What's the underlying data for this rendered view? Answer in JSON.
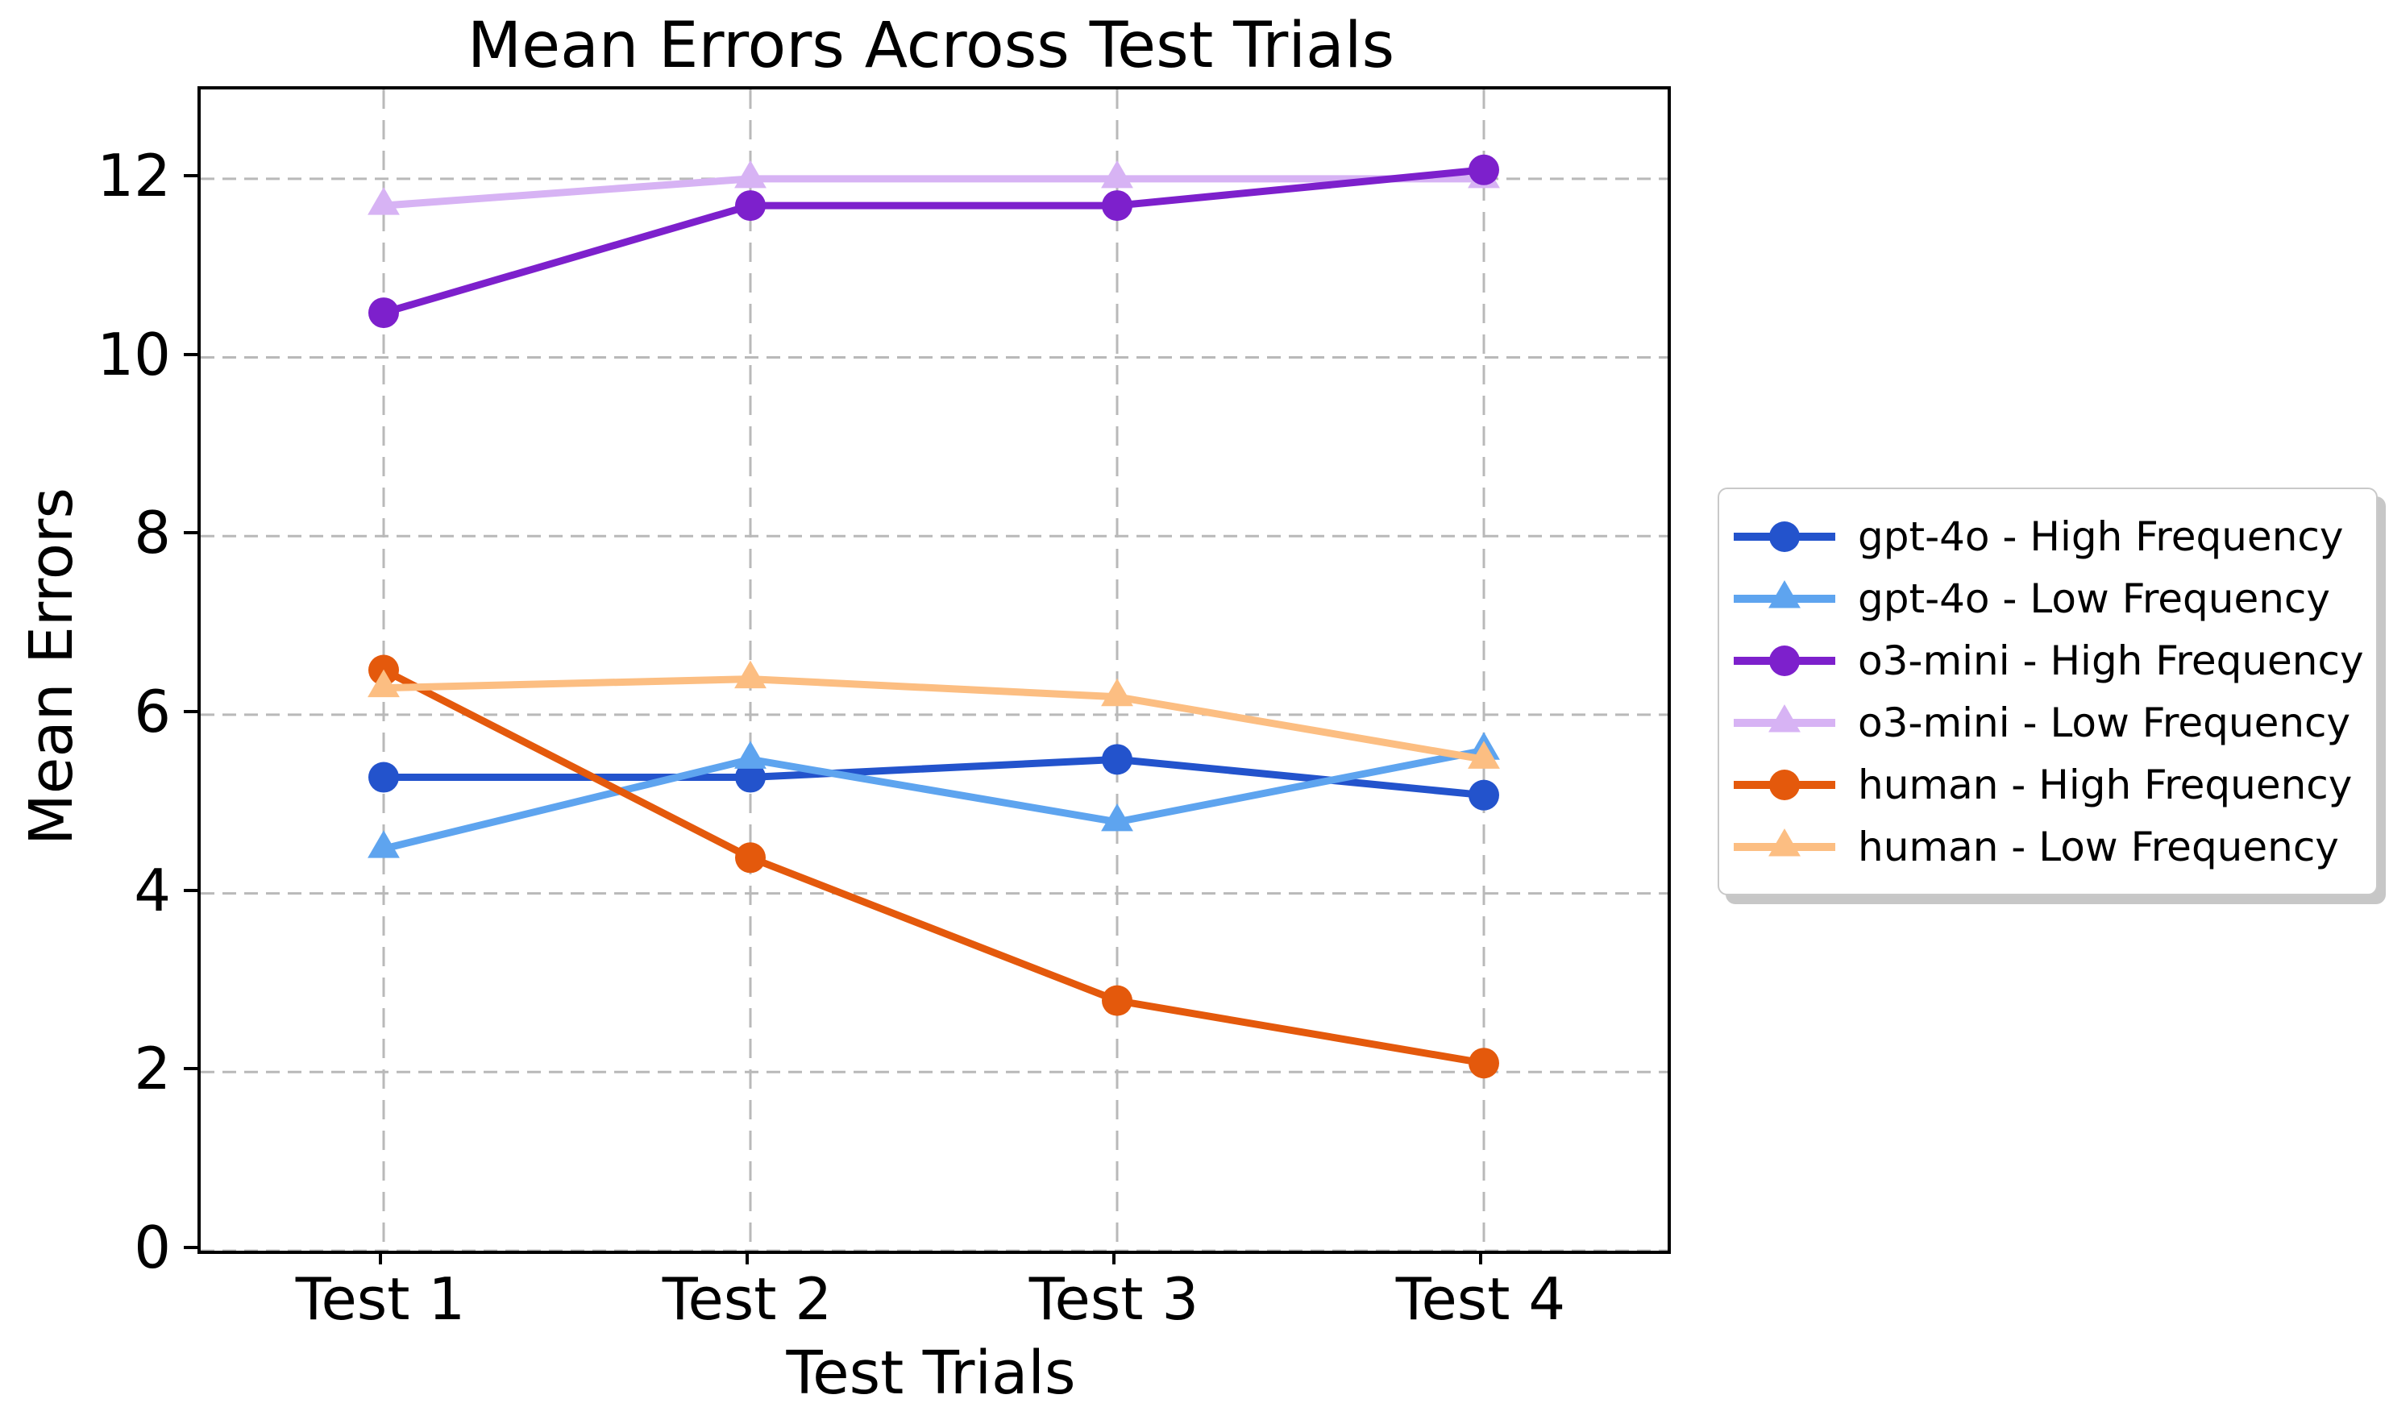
{
  "chart_data": {
    "type": "line",
    "title": "Mean Errors Across Test Trials",
    "xlabel": "Test Trials",
    "ylabel": "Mean Errors",
    "categories": [
      "Test 1",
      "Test 2",
      "Test 3",
      "Test 4"
    ],
    "yticks": [
      0,
      2,
      4,
      6,
      8,
      10,
      12
    ],
    "ylim": [
      0,
      13
    ],
    "grid": true,
    "legend_position": "right",
    "colors": {
      "grid": "#b9b9b9",
      "axis": "#000000",
      "legend_border": "#c9c9c9"
    },
    "series": [
      {
        "name": "gpt-4o - High Frequency",
        "marker": "circle",
        "color": "#2353cc",
        "values": [
          5.3,
          5.3,
          5.5,
          5.1
        ]
      },
      {
        "name": "gpt-4o - Low Frequency",
        "marker": "triangle",
        "color": "#5ea4ef",
        "values": [
          4.5,
          5.5,
          4.8,
          5.6
        ]
      },
      {
        "name": "o3-mini - High Frequency",
        "marker": "circle",
        "color": "#7d20cc",
        "values": [
          10.5,
          11.7,
          11.7,
          12.1
        ]
      },
      {
        "name": "o3-mini - Low Frequency",
        "marker": "triangle",
        "color": "#d7b3f4",
        "values": [
          11.7,
          12.0,
          12.0,
          12.0
        ]
      },
      {
        "name": "human - High Frequency",
        "marker": "circle",
        "color": "#e4590c",
        "values": [
          6.5,
          4.4,
          2.8,
          2.1
        ]
      },
      {
        "name": "human - Low Frequency",
        "marker": "triangle",
        "color": "#fcbe82",
        "values": [
          6.3,
          6.4,
          6.2,
          5.5
        ]
      }
    ]
  }
}
